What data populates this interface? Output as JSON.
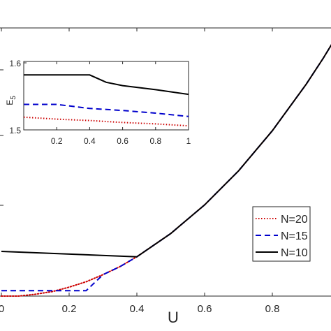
{
  "chart_data": [
    {
      "type": "line",
      "xlabel": "U",
      "ylabel": "",
      "xlim": [
        0,
        1.0
      ],
      "x_ticks": [
        "0",
        "0.2",
        "0.4",
        "0.6",
        "0.8"
      ],
      "grid": false,
      "legend": {
        "placement": "bottom-right",
        "entries": [
          "N=20",
          "N=15",
          "N=10"
        ]
      },
      "series": [
        {
          "name": "N=20",
          "color": "#cc0000",
          "style": "dotted",
          "points": [
            [
              0,
              1.5
            ],
            [
              0.05,
              1.5
            ],
            [
              0.1,
              1.52
            ],
            [
              0.15,
              1.55
            ],
            [
              0.2,
              1.6
            ],
            [
              0.25,
              1.66
            ],
            [
              0.3,
              1.74
            ],
            [
              0.35,
              1.83
            ],
            [
              0.4,
              1.94
            ],
            [
              0.5,
              2.2
            ],
            [
              0.6,
              2.52
            ],
            [
              0.7,
              2.9
            ],
            [
              0.8,
              3.35
            ],
            [
              0.9,
              3.87
            ],
            [
              0.95,
              4.16
            ],
            [
              1.0,
              4.47
            ]
          ]
        },
        {
          "name": "N=15",
          "color": "#0000cc",
          "style": "dashed",
          "points": [
            [
              0,
              1.56
            ],
            [
              0.25,
              1.56
            ],
            [
              0.3,
              1.74
            ],
            [
              0.35,
              1.83
            ],
            [
              0.4,
              1.94
            ],
            [
              0.5,
              2.2
            ],
            [
              0.6,
              2.52
            ],
            [
              0.7,
              2.9
            ],
            [
              0.8,
              3.35
            ],
            [
              0.9,
              3.87
            ],
            [
              0.95,
              4.16
            ],
            [
              1.0,
              4.47
            ]
          ]
        },
        {
          "name": "N=10",
          "color": "#000000",
          "style": "solid",
          "points": [
            [
              0,
              2.0
            ],
            [
              0.4,
              1.94
            ],
            [
              0.5,
              2.2
            ],
            [
              0.6,
              2.52
            ],
            [
              0.7,
              2.9
            ],
            [
              0.8,
              3.35
            ],
            [
              0.9,
              3.87
            ],
            [
              0.95,
              4.16
            ],
            [
              1.0,
              4.47
            ]
          ]
        }
      ]
    },
    {
      "type": "line",
      "title": "",
      "xlabel": "",
      "ylabel": "E",
      "ylabel_sub": "5",
      "xlim": [
        0,
        1
      ],
      "ylim": [
        1.5,
        1.6
      ],
      "x_ticks": [
        "0.2",
        "0.4",
        "0.6",
        "0.8",
        "1"
      ],
      "y_ticks": [
        "1.5",
        "1.6"
      ],
      "series": [
        {
          "name": "N=20",
          "color": "#cc0000",
          "style": "dotted",
          "points": [
            [
              0,
              1.519
            ],
            [
              0.2,
              1.516
            ],
            [
              0.4,
              1.514
            ],
            [
              0.6,
              1.511
            ],
            [
              0.8,
              1.509
            ],
            [
              1.0,
              1.506
            ]
          ]
        },
        {
          "name": "N=15",
          "color": "#0000cc",
          "style": "dashed",
          "points": [
            [
              0,
              1.538
            ],
            [
              0.2,
              1.538
            ],
            [
              0.4,
              1.532
            ],
            [
              0.6,
              1.529
            ],
            [
              0.8,
              1.525
            ],
            [
              1.0,
              1.52
            ]
          ]
        },
        {
          "name": "N=10",
          "color": "#000000",
          "style": "solid",
          "points": [
            [
              0,
              1.582
            ],
            [
              0.4,
              1.582
            ],
            [
              0.5,
              1.571
            ],
            [
              0.6,
              1.566
            ],
            [
              0.8,
              1.56
            ],
            [
              1.0,
              1.553
            ]
          ]
        }
      ]
    }
  ]
}
